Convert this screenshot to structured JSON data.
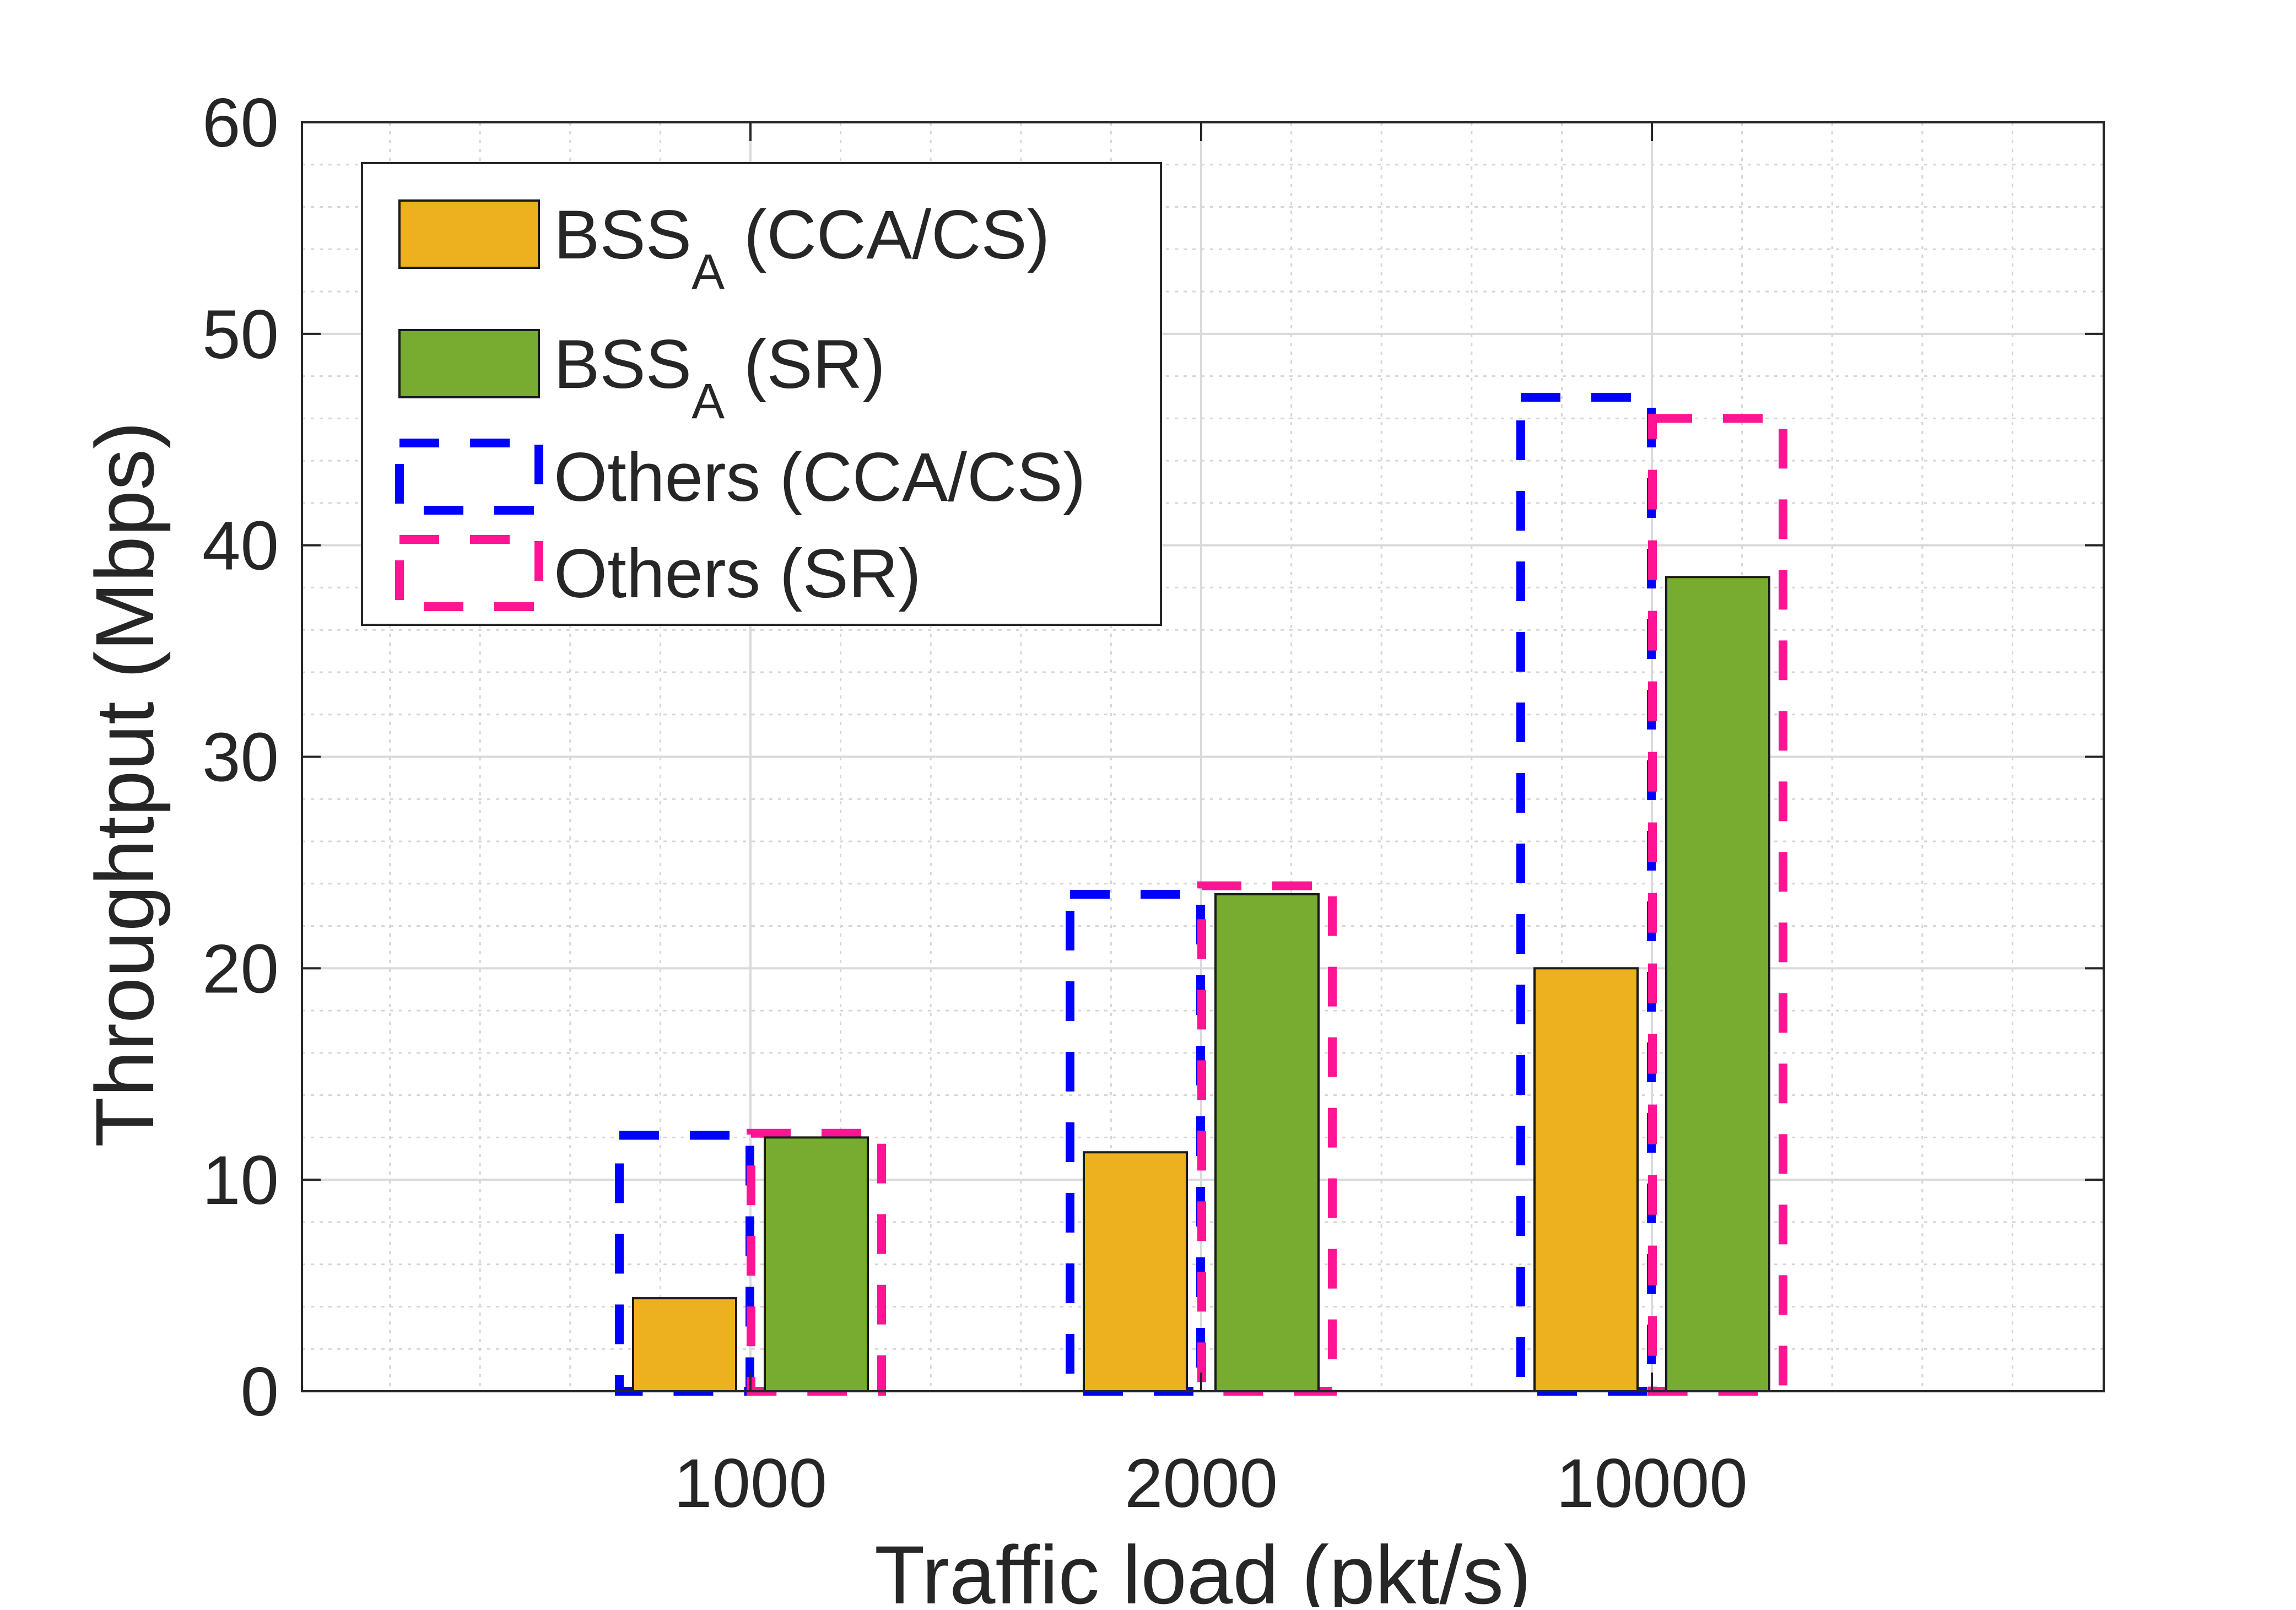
{
  "chart_data": {
    "type": "bar",
    "title": "",
    "xlabel": "Traffic load (pkt/s)",
    "ylabel": "Throughtput (Mbps)",
    "categories": [
      "1000",
      "2000",
      "10000"
    ],
    "ylim": [
      0,
      60
    ],
    "yticks": [
      0,
      10,
      20,
      30,
      40,
      50,
      60
    ],
    "grid": true,
    "minor_grid": true,
    "legend_position": "top-left",
    "series": [
      {
        "name": "BSS_A (CCA/CS)",
        "label_main": "BSS",
        "label_sub": "A",
        "label_rest": " (CCA/CS)",
        "style": "filled",
        "color": "#EDB120",
        "values": [
          4.4,
          11.3,
          20.0
        ]
      },
      {
        "name": "BSS_A (SR)",
        "label_main": "BSS",
        "label_sub": "A",
        "label_rest": " (SR)",
        "style": "filled",
        "color": "#77AC30",
        "values": [
          12.0,
          23.5,
          38.5
        ]
      },
      {
        "name": "Others (CCA/CS)",
        "label_main": "Others (CCA/CS)",
        "label_sub": "",
        "label_rest": "",
        "style": "dashed-outline",
        "color": "#0000FF",
        "values": [
          12.1,
          23.5,
          47.0
        ]
      },
      {
        "name": "Others (SR)",
        "label_main": "Others (SR)",
        "label_sub": "",
        "label_rest": "",
        "style": "dashed-outline",
        "color": "#FF1493",
        "values": [
          12.2,
          23.9,
          46.0
        ]
      }
    ]
  }
}
